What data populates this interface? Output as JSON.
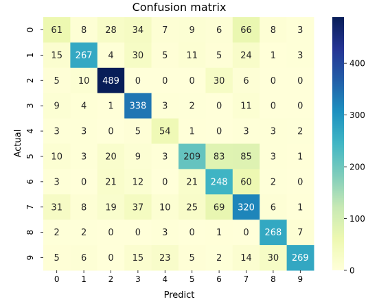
{
  "chart_data": {
    "type": "heatmap",
    "title": "Confusion matrix",
    "xlabel": "Predict",
    "ylabel": "Actual",
    "x_categories": [
      "0",
      "1",
      "2",
      "3",
      "4",
      "5",
      "6",
      "7",
      "8",
      "9"
    ],
    "y_categories": [
      "0",
      "1",
      "2",
      "3",
      "4",
      "5",
      "6",
      "7",
      "8",
      "9"
    ],
    "values": [
      [
        61,
        8,
        28,
        34,
        7,
        9,
        6,
        66,
        8,
        3
      ],
      [
        15,
        267,
        4,
        30,
        5,
        11,
        5,
        24,
        1,
        3
      ],
      [
        5,
        10,
        489,
        0,
        0,
        0,
        30,
        6,
        0,
        0
      ],
      [
        9,
        4,
        1,
        338,
        3,
        2,
        0,
        11,
        0,
        0
      ],
      [
        3,
        3,
        0,
        5,
        54,
        1,
        0,
        3,
        3,
        2
      ],
      [
        10,
        3,
        20,
        9,
        3,
        209,
        83,
        85,
        3,
        1
      ],
      [
        3,
        0,
        21,
        12,
        0,
        21,
        248,
        60,
        2,
        0
      ],
      [
        31,
        8,
        19,
        37,
        10,
        25,
        69,
        320,
        6,
        1
      ],
      [
        2,
        2,
        0,
        0,
        3,
        0,
        1,
        0,
        268,
        7
      ],
      [
        5,
        6,
        0,
        15,
        23,
        5,
        2,
        14,
        30,
        269
      ]
    ],
    "colormap": "YlGnBu",
    "colorbar": {
      "min": 0,
      "max": 489,
      "ticks": [
        0,
        100,
        200,
        300,
        400
      ]
    },
    "annotation_threshold": 245
  }
}
